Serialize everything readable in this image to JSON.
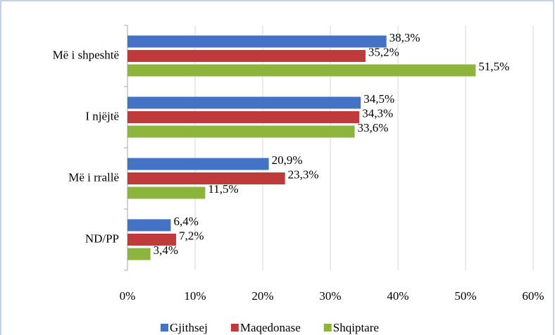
{
  "chart_data": {
    "type": "bar",
    "orientation": "horizontal",
    "categories": [
      "Më i shpeshtë",
      "I njëjtë",
      "Më i rrallë",
      "ND/PP"
    ],
    "series": [
      {
        "name": "Gjithsej",
        "color": "#4472c4",
        "values": [
          38.3,
          34.5,
          20.9,
          6.4
        ],
        "value_labels": [
          "38,3%",
          "34,5%",
          "20,9%",
          "6,4%"
        ]
      },
      {
        "name": "Maqedonase",
        "color": "#c0393b",
        "values": [
          35.2,
          34.3,
          23.3,
          7.2
        ],
        "value_labels": [
          "35,2%",
          "34,3%",
          "23,3%",
          "7,2%"
        ]
      },
      {
        "name": "Shqiptare",
        "color": "#8db53c",
        "values": [
          51.5,
          33.6,
          11.5,
          3.4
        ],
        "value_labels": [
          "51,5%",
          "33,6%",
          "11,5%",
          "3,4%"
        ]
      }
    ],
    "xlim": [
      0,
      60
    ],
    "xticks": [
      {
        "value": 0,
        "label": "0%"
      },
      {
        "value": 10,
        "label": "10%"
      },
      {
        "value": 20,
        "label": "20%"
      },
      {
        "value": 30,
        "label": "30%"
      },
      {
        "value": 40,
        "label": "40%"
      },
      {
        "value": 50,
        "label": "50%"
      },
      {
        "value": 60,
        "label": "60%"
      }
    ],
    "grid": true,
    "legend": "bottom"
  }
}
